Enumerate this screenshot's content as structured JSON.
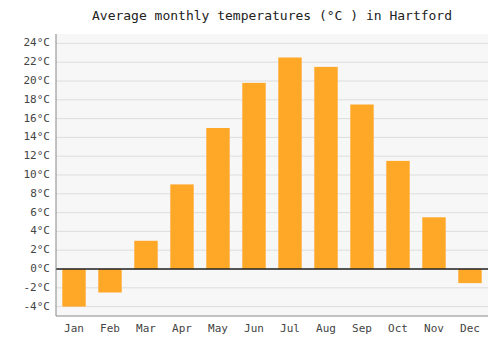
{
  "chart_data": {
    "type": "bar",
    "title": "Average monthly temperatures (°C ) in Hartford",
    "categories": [
      "Jan",
      "Feb",
      "Mar",
      "Apr",
      "May",
      "Jun",
      "Jul",
      "Aug",
      "Sep",
      "Oct",
      "Nov",
      "Dec"
    ],
    "values": [
      -4.0,
      -2.5,
      3.0,
      9.0,
      15.0,
      19.8,
      22.5,
      21.5,
      17.5,
      11.5,
      5.5,
      -1.5
    ],
    "color": "#FFA726",
    "ylim": [
      -5,
      25
    ],
    "yticks": [
      {
        "value": -4,
        "label": "-4°C"
      },
      {
        "value": -2,
        "label": "-2°C"
      },
      {
        "value": 0,
        "label": "0°C"
      },
      {
        "value": 2,
        "label": "2°C"
      },
      {
        "value": 4,
        "label": "4°C"
      },
      {
        "value": 6,
        "label": "6°C"
      },
      {
        "value": 8,
        "label": "8°C"
      },
      {
        "value": 10,
        "label": "10°C"
      },
      {
        "value": 12,
        "label": "12°C"
      },
      {
        "value": 14,
        "label": "14°C"
      },
      {
        "value": 16,
        "label": "16°C"
      },
      {
        "value": 18,
        "label": "18°C"
      },
      {
        "value": 20,
        "label": "20°C"
      },
      {
        "value": 22,
        "label": "22°C"
      },
      {
        "value": 24,
        "label": "24°C"
      }
    ],
    "grid": true
  }
}
